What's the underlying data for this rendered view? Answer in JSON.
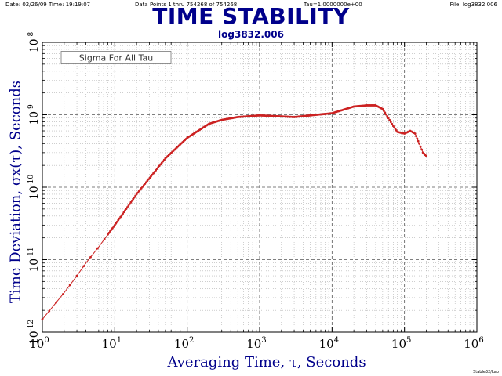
{
  "header": {
    "date": "Date: 02/26/09  Time: 19:19:07",
    "points": "Data Points 1 thru 754268 of 754268",
    "tau": "Tau=1.0000000e+00",
    "file": "File: log3832.006"
  },
  "footer": "Stable32/Lab",
  "chart_data": {
    "type": "line",
    "title": "TIME STABILITY",
    "subtitle": "log3832.006",
    "xlabel": "Averaging Time, τ, Seconds",
    "ylabel": "Time Deviation, σx(τ), Seconds",
    "annotation": "Sigma For All Tau",
    "x_scale": "log",
    "y_scale": "log",
    "xlim": [
      1,
      1000000
    ],
    "ylim": [
      1e-12,
      1e-08
    ],
    "grid": true,
    "x_tick_labels": [
      {
        "base": "10",
        "exp": "0"
      },
      {
        "base": "10",
        "exp": "1"
      },
      {
        "base": "10",
        "exp": "2"
      },
      {
        "base": "10",
        "exp": "3"
      },
      {
        "base": "10",
        "exp": "4"
      },
      {
        "base": "10",
        "exp": "5"
      },
      {
        "base": "10",
        "exp": "6"
      }
    ],
    "y_tick_labels": [
      {
        "base": "10",
        "exp": "-12"
      },
      {
        "base": "10",
        "exp": "-11"
      },
      {
        "base": "10",
        "exp": "-10"
      },
      {
        "base": "10",
        "exp": "-9"
      },
      {
        "base": "10",
        "exp": "-8"
      }
    ],
    "series_color": "#cc2222",
    "series": [
      {
        "x": [
          1,
          2,
          3,
          4,
          6,
          10,
          20,
          50,
          100,
          200,
          300,
          500,
          1000,
          2000,
          3000,
          5000,
          10000,
          20000,
          30000,
          40000,
          50000,
          60000,
          70000,
          80000,
          100000,
          120000,
          140000,
          160000,
          180000,
          200000
        ],
        "y": [
          1.5e-12,
          3.5e-12,
          6e-12,
          9e-12,
          1.5e-11,
          3e-11,
          8e-11,
          2.5e-10,
          4.8e-10,
          7.5e-10,
          8.5e-10,
          9.3e-10,
          9.8e-10,
          9.5e-10,
          9.3e-10,
          9.8e-10,
          1.05e-09,
          1.3e-09,
          1.35e-09,
          1.35e-09,
          1.2e-09,
          9e-10,
          7e-10,
          5.8e-10,
          5.5e-10,
          6e-10,
          5.5e-10,
          4e-10,
          3e-10,
          2.7e-10
        ]
      }
    ]
  }
}
